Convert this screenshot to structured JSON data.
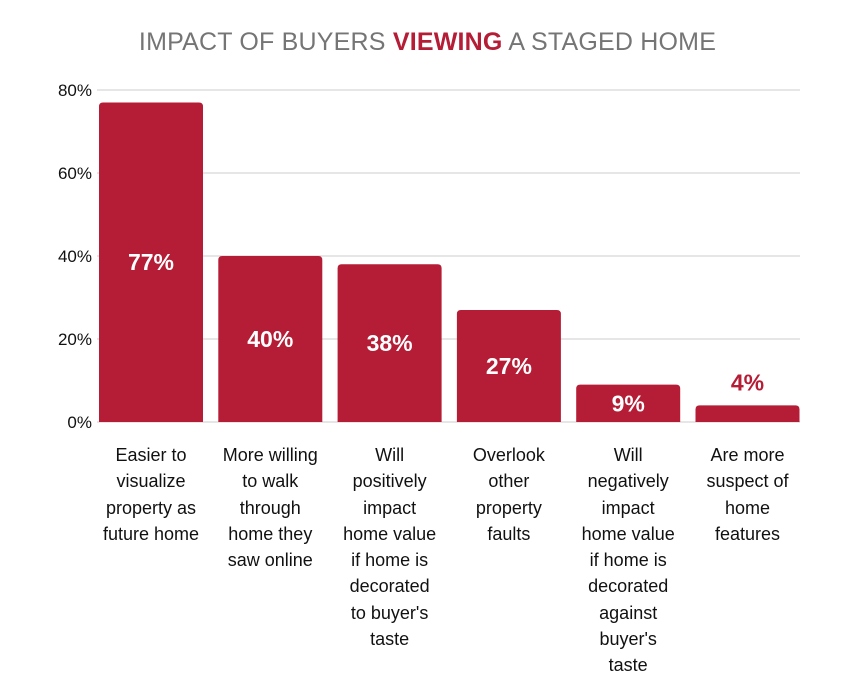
{
  "title": {
    "before": "IMPACT OF BUYERS ",
    "highlight": "VIEWING",
    "after": " A STAGED HOME"
  },
  "colors": {
    "bar": "#b51c35",
    "title": "#757575",
    "grid": "#cccccc",
    "inside_label": "#ffffff"
  },
  "chart_data": {
    "type": "bar",
    "title": "IMPACT OF BUYERS VIEWING A STAGED HOME",
    "categories": [
      "Easier to\nvisualize\nproperty as\nfuture home",
      "More willing\nto walk\nthrough\nhome they\nsaw online",
      "Will\npositively\nimpact\nhome value\nif home is\ndecorated\nto buyer's\ntaste",
      "Overlook\nother\nproperty\nfaults",
      "Will\nnegatively\nimpact\nhome value\nif home is\ndecorated\nagainst\nbuyer's\ntaste",
      "Are more\nsuspect of\nhome\nfeatures"
    ],
    "values": [
      77,
      40,
      38,
      27,
      9,
      4
    ],
    "data_labels": [
      "77%",
      "40%",
      "38%",
      "27%",
      "9%",
      "4%"
    ],
    "yticks": [
      "0%",
      "20%",
      "40%",
      "60%",
      "80%"
    ],
    "ytick_values": [
      0,
      20,
      40,
      60,
      80
    ],
    "ylim": [
      0,
      80
    ],
    "xlabel": "",
    "ylabel": "",
    "grid": true,
    "legend": "none"
  }
}
